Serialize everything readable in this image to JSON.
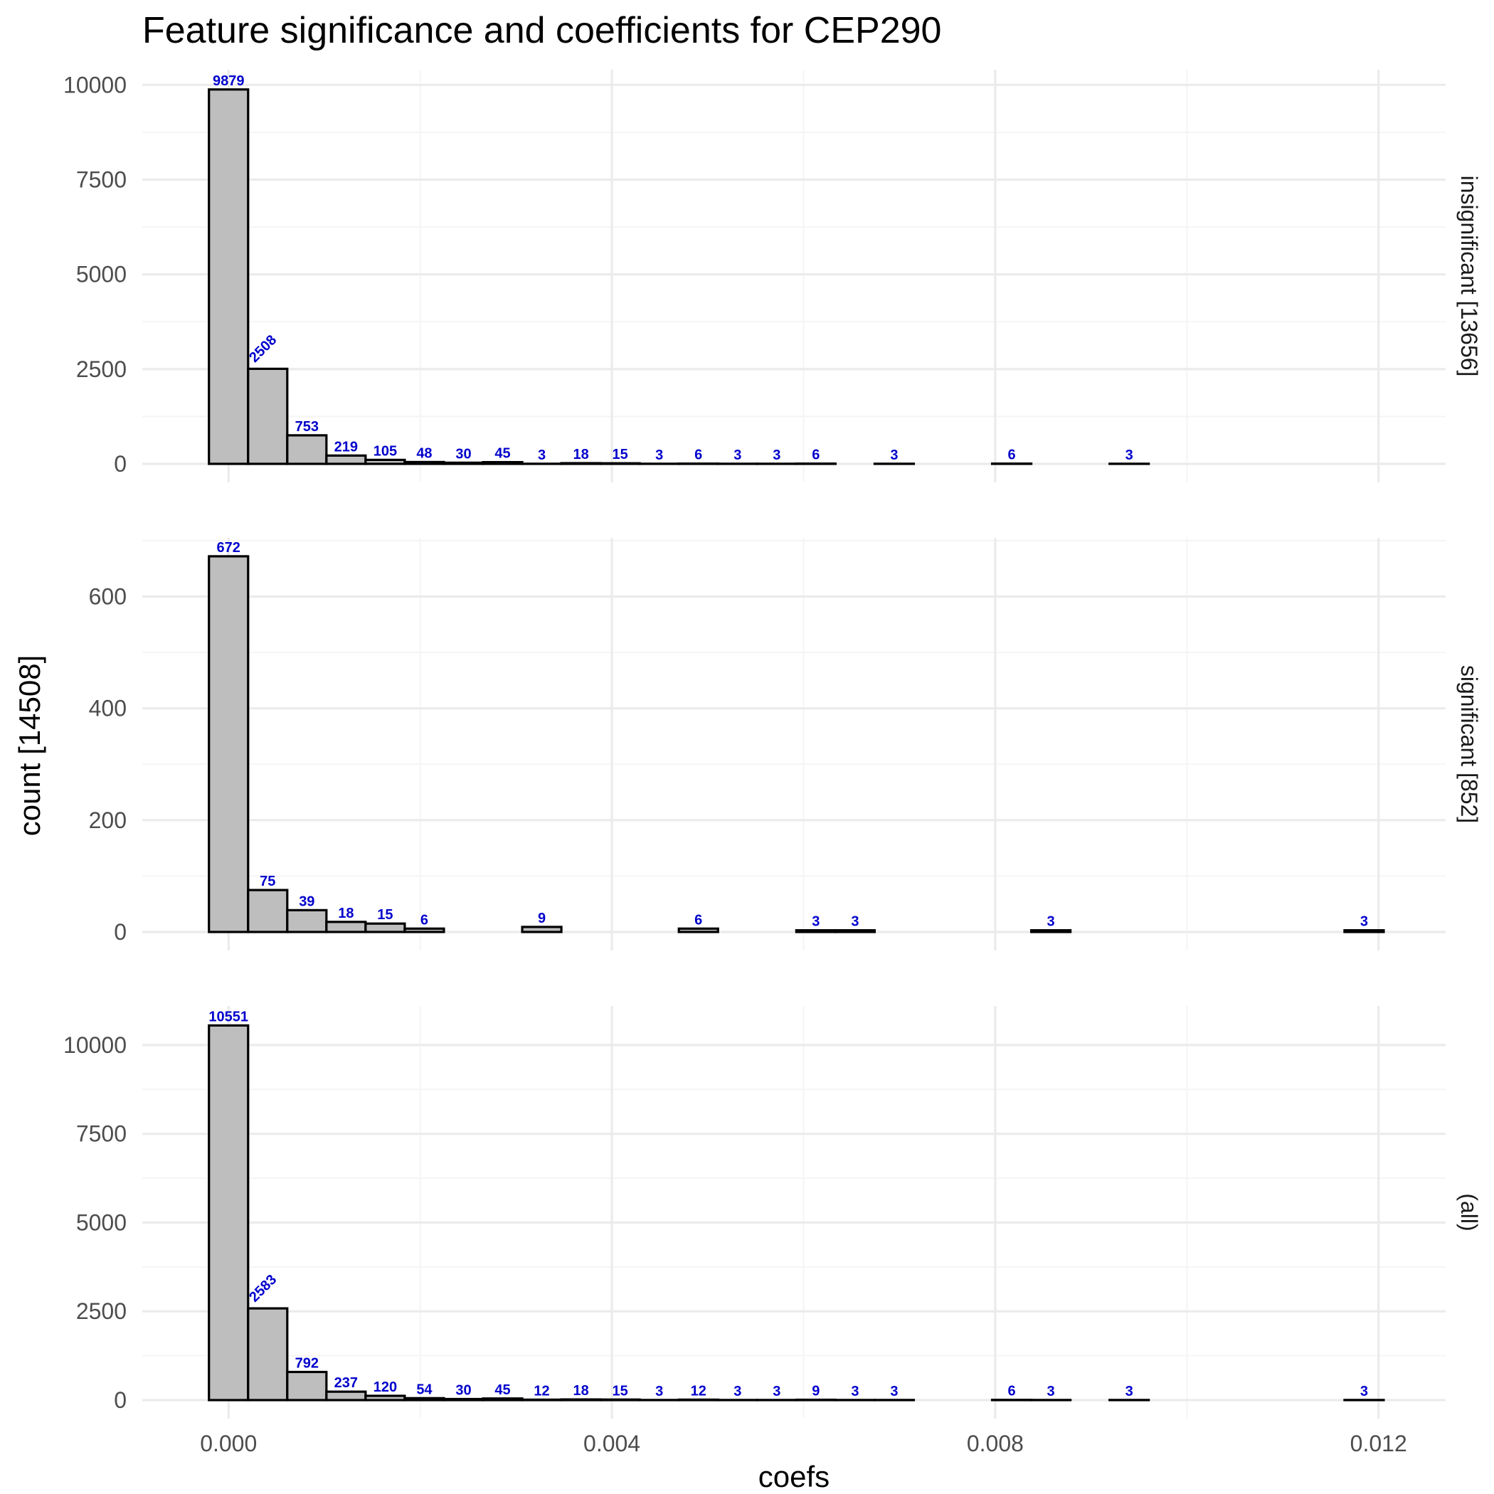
{
  "chart_data": {
    "type": "bar",
    "title": "Feature significance and coefficients for CEP290",
    "xlabel": "coefs",
    "ylabel": "count [14508]",
    "xlim": [
      -0.0009,
      0.0127
    ],
    "x_ticks": [
      "0.000",
      "0.004",
      "0.008",
      "0.012"
    ],
    "x_tick_values": [
      0,
      0.004,
      0.008,
      0.012
    ],
    "bin_width": 0.0004086,
    "bin_centers": [
      0,
      0.0004086,
      0.0008172,
      0.0012258,
      0.0016344,
      0.002043,
      0.0024516,
      0.0028602,
      0.0032688,
      0.0036774,
      0.004086,
      0.0044946,
      0.0049032,
      0.0053118,
      0.0057204,
      0.006129,
      0.0065376,
      0.0069462,
      0.0073548,
      0.0077634,
      0.008172,
      0.0085806,
      0.0089892,
      0.0093978,
      0.0098064,
      0.010215,
      0.0106236,
      0.0110322,
      0.0114408,
      0.0118494
    ],
    "grid": true,
    "facets": [
      {
        "strip_label": "insignificant [13656]",
        "ylim": [
          0,
          10400
        ],
        "y_ticks": [
          0,
          2500,
          5000,
          7500,
          10000
        ],
        "counts": [
          9879,
          2508,
          753,
          219,
          105,
          48,
          30,
          45,
          3,
          18,
          15,
          3,
          6,
          3,
          3,
          6,
          0,
          3,
          0,
          0,
          6,
          0,
          0,
          3,
          0,
          0,
          0,
          0,
          0,
          0
        ],
        "rotated_labels": [
          1
        ]
      },
      {
        "strip_label": "significant [852]",
        "ylim": [
          0,
          705
        ],
        "y_ticks": [
          0,
          200,
          400,
          600
        ],
        "counts": [
          672,
          75,
          39,
          18,
          15,
          6,
          0,
          0,
          9,
          0,
          0,
          0,
          6,
          0,
          0,
          3,
          3,
          0,
          0,
          0,
          0,
          3,
          0,
          0,
          0,
          0,
          0,
          0,
          0,
          3
        ],
        "rotated_labels": []
      },
      {
        "strip_label": "(all)",
        "ylim": [
          0,
          11100
        ],
        "y_ticks": [
          0,
          2500,
          5000,
          7500,
          10000
        ],
        "counts": [
          10551,
          2583,
          792,
          237,
          120,
          54,
          30,
          45,
          12,
          18,
          15,
          3,
          12,
          3,
          3,
          9,
          3,
          3,
          0,
          0,
          6,
          3,
          0,
          3,
          0,
          0,
          0,
          0,
          0,
          3
        ],
        "rotated_labels": [
          1
        ]
      }
    ]
  }
}
